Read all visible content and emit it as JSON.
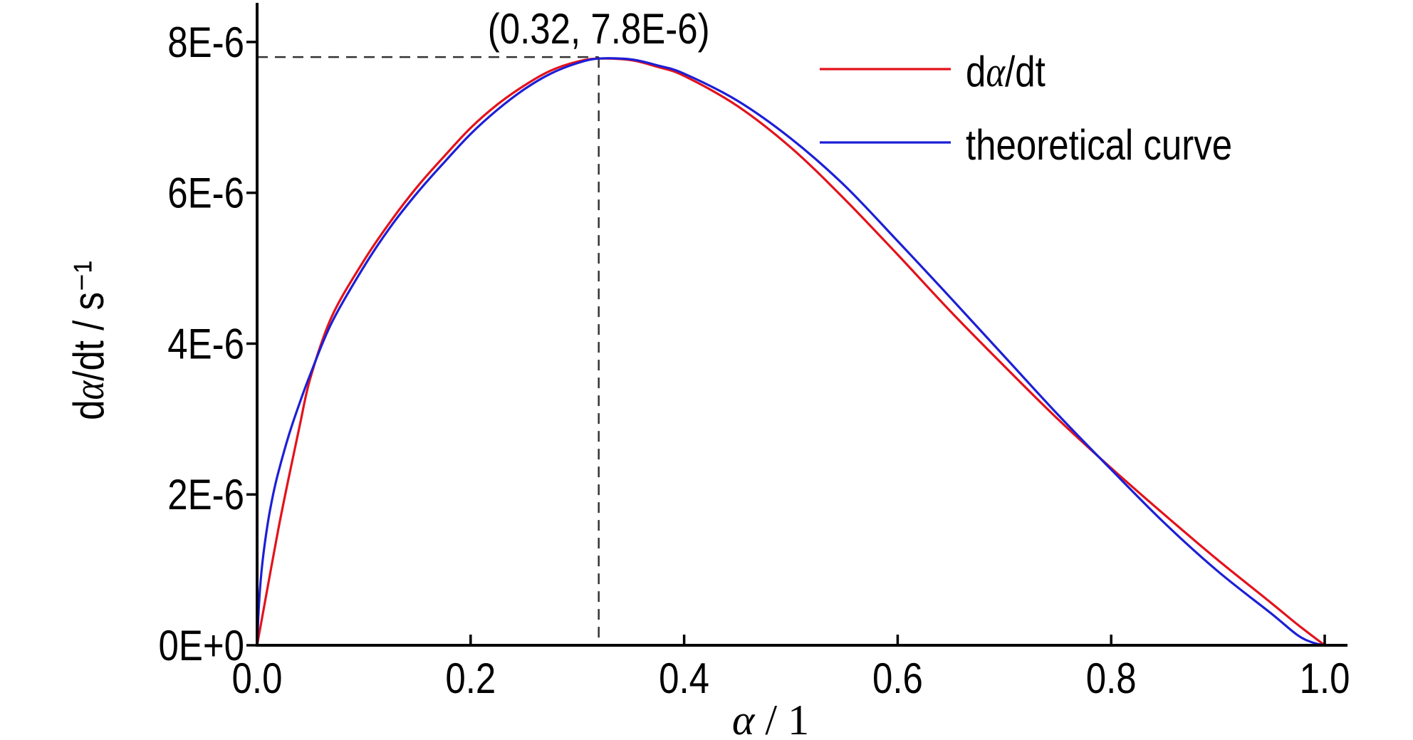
{
  "chart_data": {
    "type": "line",
    "title": "",
    "xlabel": "α / 1",
    "ylabel": "dα/dt / s⁻¹",
    "xlim": [
      0,
      1.02
    ],
    "ylim": [
      0,
      8.5e-06
    ],
    "x_ticks": [
      0,
      0.2,
      0.4,
      0.6,
      0.8,
      1.0
    ],
    "x_tick_labels": [
      "0.0",
      "0.2",
      "0.4",
      "0.6",
      "0.8",
      "1.0"
    ],
    "y_ticks": [
      0,
      2e-06,
      4e-06,
      6e-06,
      8e-06
    ],
    "y_tick_labels": [
      "0E+0",
      "2E-6",
      "4E-6",
      "6E-6",
      "8E-6"
    ],
    "grid": false,
    "legend": "top-right",
    "series": [
      {
        "name": "dα/dt",
        "color": "#e3121b",
        "x": [
          0,
          0.01,
          0.02,
          0.03,
          0.04,
          0.05,
          0.07,
          0.1,
          0.125,
          0.15,
          0.175,
          0.2,
          0.225,
          0.25,
          0.275,
          0.3,
          0.32,
          0.35,
          0.375,
          0.4,
          0.45,
          0.5,
          0.55,
          0.6,
          0.65,
          0.7,
          0.75,
          0.8,
          0.85,
          0.9,
          0.95,
          0.975,
          1.0
        ],
        "y": [
          0,
          7.8e-07,
          1.55e-06,
          2.25e-06,
          2.92e-06,
          3.55e-06,
          4.36e-06,
          5.1e-06,
          5.62e-06,
          6.08e-06,
          6.48e-06,
          6.86e-06,
          7.17e-06,
          7.42e-06,
          7.62e-06,
          7.74e-06,
          7.78e-06,
          7.76e-06,
          7.67e-06,
          7.55e-06,
          7.15e-06,
          6.6e-06,
          5.92e-06,
          5.18e-06,
          4.42e-06,
          3.7e-06,
          3e-06,
          2.35e-06,
          1.73e-06,
          1.13e-06,
          5.6e-07,
          2.7e-07,
          0
        ]
      },
      {
        "name": "theoretical curve",
        "color": "#1c1fd6",
        "x": [
          0,
          0.002,
          0.005,
          0.01,
          0.015,
          0.02,
          0.03,
          0.04,
          0.05,
          0.07,
          0.1,
          0.125,
          0.15,
          0.175,
          0.2,
          0.225,
          0.25,
          0.275,
          0.3,
          0.32,
          0.35,
          0.375,
          0.4,
          0.45,
          0.5,
          0.55,
          0.6,
          0.65,
          0.7,
          0.75,
          0.8,
          0.85,
          0.9,
          0.95,
          0.975,
          0.99,
          1.0
        ],
        "y": [
          0,
          6e-07,
          1.1e-06,
          1.62e-06,
          2e-06,
          2.3e-06,
          2.8e-06,
          3.22e-06,
          3.6e-06,
          4.28e-06,
          5.02e-06,
          5.55e-06,
          6e-06,
          6.4e-06,
          6.78e-06,
          7.1e-06,
          7.37e-06,
          7.58e-06,
          7.72e-06,
          7.78e-06,
          7.77e-06,
          7.69e-06,
          7.58e-06,
          7.22e-06,
          6.72e-06,
          6.1e-06,
          5.36e-06,
          4.6e-06,
          3.83e-06,
          3.06e-06,
          2.33e-06,
          1.62e-06,
          9.8e-07,
          4.2e-07,
          1.3e-07,
          3e-08,
          0
        ]
      }
    ],
    "annotations": [
      {
        "text": "(0.32, 7.8E-6)",
        "x": 0.32,
        "y": 7.8e-06
      }
    ]
  }
}
